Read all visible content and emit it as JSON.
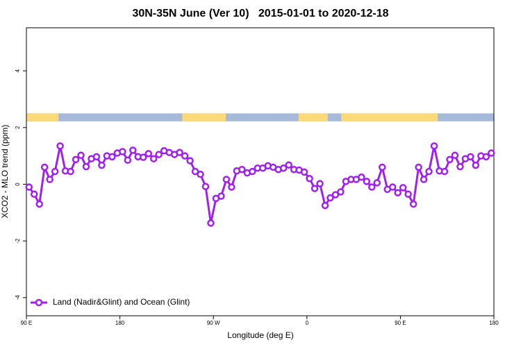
{
  "chart_data": {
    "type": "line",
    "title": "30N-35N June (Ver 10)   2015-01-01 to 2020-12-18",
    "xlabel": "Longitude (deg E)",
    "ylabel": "XCO2 - MLO trend (ppm)",
    "xlim": [
      90,
      540
    ],
    "ylim": [
      -4.64,
      5.52
    ],
    "xticks": [
      {
        "value": 90,
        "label": "90 E"
      },
      {
        "value": 180,
        "label": "180"
      },
      {
        "value": 270,
        "label": "90 W"
      },
      {
        "value": 360,
        "label": "0"
      },
      {
        "value": 450,
        "label": "90 E"
      },
      {
        "value": 540,
        "label": "180"
      }
    ],
    "yticks": [
      -4,
      -2,
      0,
      2,
      4
    ],
    "legend_position": "bottomleft",
    "band": {
      "ylim": [
        2.22,
        2.5
      ],
      "ocean_color": "#a6b9d8",
      "land_color": "#fdd97a",
      "land": [
        [
          90,
          121
        ],
        [
          240,
          282
        ],
        [
          352,
          380
        ],
        [
          393,
          486
        ]
      ]
    },
    "x": [
      92.5,
      97.5,
      102.5,
      107.5,
      112.5,
      117.5,
      122.5,
      127.5,
      132.5,
      137.5,
      142.5,
      147.5,
      152.5,
      157.5,
      162.5,
      167.5,
      172.5,
      177.5,
      182.5,
      187.5,
      192.5,
      197.5,
      202.5,
      207.5,
      212.5,
      217.5,
      222.5,
      227.5,
      232.5,
      237.5,
      242.5,
      247.5,
      252.5,
      257.5,
      262.5,
      267.5,
      272.5,
      277.5,
      282.5,
      287.5,
      292.5,
      297.5,
      302.5,
      307.5,
      312.5,
      317.5,
      322.5,
      327.5,
      332.5,
      337.5,
      342.5,
      347.5,
      352.5,
      357.5,
      362.5,
      367.5,
      372.5,
      377.5,
      382.5,
      387.5,
      392.5,
      397.5,
      402.5,
      407.5,
      412.5,
      417.5,
      422.5,
      427.5,
      432.5,
      437.5,
      442.5,
      447.5,
      452.5,
      457.5,
      462.5,
      467.5,
      472.5,
      477.5,
      482.5,
      487.5,
      492.5,
      497.5,
      502.5,
      507.5,
      512.5,
      517.5,
      522.5,
      527.5,
      532.5,
      537.5
    ],
    "series": [
      {
        "name": "Land (Nadir&Glint) and Ocean (Glint)",
        "color": "#a020f0",
        "values": [
          -0.1,
          -0.35,
          -0.7,
          0.6,
          0.17,
          0.45,
          1.35,
          0.47,
          0.45,
          0.87,
          1.02,
          0.62,
          0.9,
          0.97,
          0.67,
          1.0,
          0.97,
          1.1,
          1.15,
          0.85,
          1.2,
          0.97,
          0.95,
          1.08,
          0.9,
          1.05,
          1.18,
          1.12,
          1.05,
          1.12,
          1.0,
          0.83,
          0.45,
          0.35,
          -0.08,
          -1.37,
          -0.5,
          -0.42,
          0.17,
          -0.1,
          0.47,
          0.52,
          0.4,
          0.45,
          0.57,
          0.57,
          0.65,
          0.6,
          0.52,
          0.57,
          0.68,
          0.52,
          0.5,
          0.43,
          0.2,
          -0.15,
          0.02,
          -0.75,
          -0.48,
          -0.37,
          -0.27,
          0.1,
          0.17,
          0.17,
          0.25,
          0.1,
          -0.1,
          0.05,
          0.6,
          -0.18,
          -0.1,
          -0.3,
          -0.12,
          -0.35,
          -0.7,
          0.6,
          0.17,
          0.45,
          1.35,
          0.47,
          0.45,
          0.87,
          1.02,
          0.62,
          0.9,
          0.97,
          0.67,
          1.0,
          0.97,
          1.1
        ]
      }
    ]
  }
}
